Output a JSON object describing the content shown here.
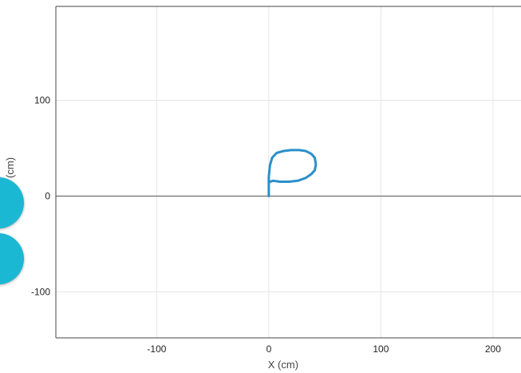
{
  "chart_data": {
    "type": "line",
    "title": "",
    "xlabel": "X (cm)",
    "ylabel": "Y (cm)",
    "xlim": [
      -190,
      225
    ],
    "ylim": [
      -148,
      198
    ],
    "xticks": [
      -100,
      0,
      100,
      200
    ],
    "yticks": [
      -100,
      0,
      100
    ],
    "grid": true,
    "legend": "none",
    "series": [
      {
        "color": "#2a8fc9",
        "x": [
          0,
          0,
          0,
          1,
          3,
          7,
          13,
          20,
          27,
          33,
          38,
          41,
          42,
          41,
          38,
          33,
          26,
          18,
          10,
          4,
          1,
          0
        ],
        "y": [
          0,
          8,
          20,
          32,
          40,
          45,
          47,
          48,
          48,
          47,
          44,
          40,
          33,
          27,
          23,
          19,
          16,
          15,
          15,
          16,
          15,
          14
        ]
      }
    ]
  },
  "colors": {
    "grid": "#e6e6e6",
    "axis_zero": "#555555",
    "frame": "#444444",
    "side_buttons": "#1bb8d4"
  }
}
